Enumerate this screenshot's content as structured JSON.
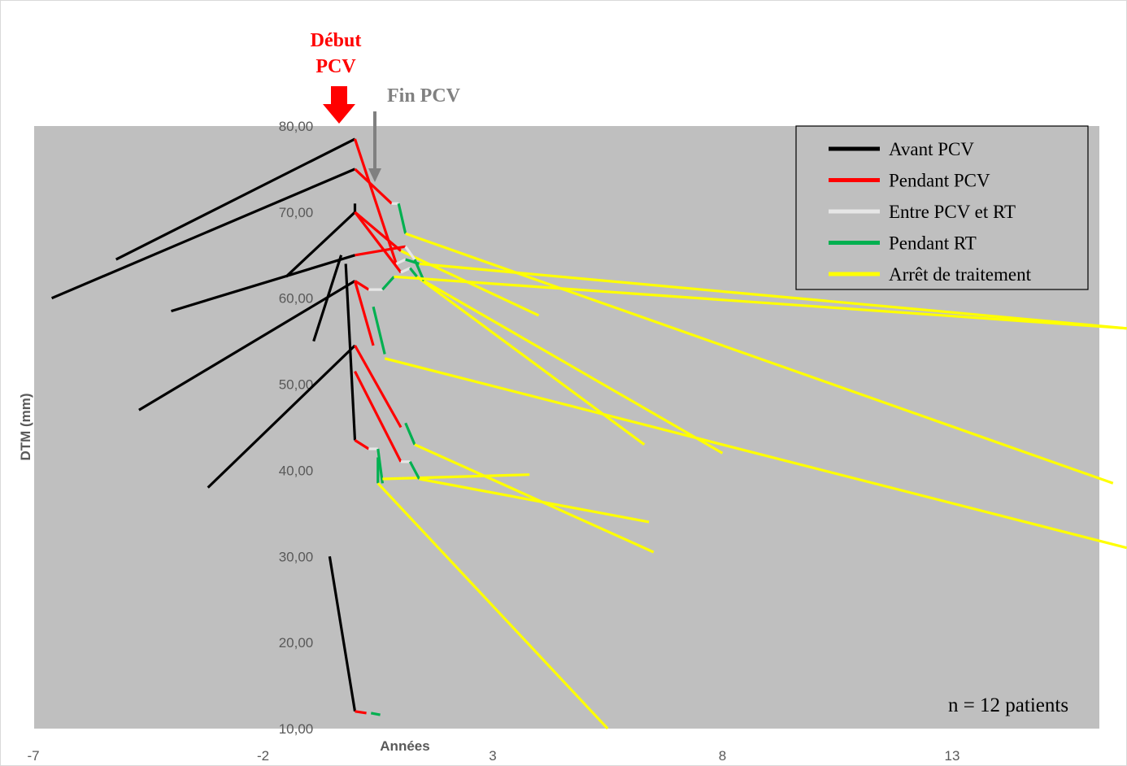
{
  "chart_data": {
    "type": "line",
    "xlabel": "Années",
    "ylabel": "DTM (mm)",
    "xlim": [
      -7,
      17
    ],
    "ylim": [
      10,
      80
    ],
    "x_ticks": [
      -7,
      -2,
      3,
      8,
      13
    ],
    "x_tick_labels": [
      "-7",
      "-2",
      "3",
      "8",
      "13"
    ],
    "y_ticks": [
      10,
      20,
      30,
      40,
      50,
      60,
      70,
      80
    ],
    "y_tick_labels": [
      "10,00",
      "20,00",
      "30,00",
      "40,00",
      "50,00",
      "60,00",
      "70,00",
      "80,00"
    ],
    "plot_background": "#bfbfbf",
    "grid": false,
    "legend_position": "top-right",
    "series": [
      {
        "name": "Avant PCV",
        "color": "#000000"
      },
      {
        "name": "Pendant PCV",
        "color": "#ff0000"
      },
      {
        "name": "Entre PCV et RT",
        "color": "#e6e6e6"
      },
      {
        "name": "Pendant RT",
        "color": "#00b050"
      },
      {
        "name": "Arrêt de traitement",
        "color": "#ffff00"
      }
    ],
    "annotations": [
      {
        "text_lines": [
          "Début",
          "PCV"
        ],
        "color": "#ff0000",
        "x": 0,
        "arrow": "red-block"
      },
      {
        "text_lines": [
          "Fin PCV"
        ],
        "color": "#808080",
        "x": 0.8,
        "arrow": "grey-thin"
      }
    ],
    "note": "n = 12 patients",
    "patients": [
      {
        "segments": [
          {
            "phase": 0,
            "points": [
              [
                -5.2,
                64.5
              ],
              [
                0.0,
                78.5
              ]
            ]
          },
          {
            "phase": 1,
            "points": [
              [
                0.0,
                78.5
              ],
              [
                0.9,
                64.0
              ]
            ]
          },
          {
            "phase": 2,
            "points": [
              [
                0.9,
                64.0
              ],
              [
                1.1,
                64.5
              ]
            ]
          },
          {
            "phase": 3,
            "points": [
              [
                1.1,
                64.5
              ],
              [
                1.4,
                64.0
              ]
            ]
          },
          {
            "phase": 4,
            "points": [
              [
                1.4,
                64.0
              ],
              [
                16.8,
                56.5
              ]
            ]
          }
        ]
      },
      {
        "segments": [
          {
            "phase": 0,
            "points": [
              [
                -6.6,
                60.0
              ],
              [
                0.0,
                75.0
              ]
            ]
          },
          {
            "phase": 1,
            "points": [
              [
                0.0,
                75.0
              ],
              [
                0.8,
                71.0
              ]
            ]
          },
          {
            "phase": 2,
            "points": [
              [
                0.8,
                71.0
              ],
              [
                0.95,
                71.0
              ]
            ]
          },
          {
            "phase": 3,
            "points": [
              [
                0.95,
                71.0
              ],
              [
                1.1,
                67.5
              ]
            ]
          },
          {
            "phase": 4,
            "points": [
              [
                1.1,
                67.5
              ],
              [
                16.5,
                38.5
              ]
            ]
          }
        ]
      },
      {
        "segments": [
          {
            "phase": 0,
            "points": [
              [
                -1.5,
                62.5
              ],
              [
                0.0,
                70.0
              ]
            ]
          },
          {
            "phase": 1,
            "points": [
              [
                0.0,
                70.0
              ],
              [
                1.0,
                65.5
              ]
            ]
          },
          {
            "phase": 4,
            "points": [
              [
                1.0,
                65.5
              ],
              [
                4.0,
                58.0
              ]
            ]
          }
        ]
      },
      {
        "segments": [
          {
            "phase": 0,
            "points": [
              [
                0.0,
                71.0
              ],
              [
                0.0,
                70.0
              ]
            ]
          },
          {
            "phase": 1,
            "points": [
              [
                0.0,
                70.0
              ],
              [
                1.0,
                63.0
              ]
            ]
          },
          {
            "phase": 2,
            "points": [
              [
                1.0,
                63.0
              ],
              [
                1.2,
                63.5
              ]
            ]
          },
          {
            "phase": 3,
            "points": [
              [
                1.2,
                63.5
              ],
              [
                1.35,
                62.5
              ]
            ]
          },
          {
            "phase": 4,
            "points": [
              [
                1.35,
                62.5
              ],
              [
                6.3,
                43.0
              ]
            ]
          }
        ]
      },
      {
        "segments": [
          {
            "phase": 0,
            "points": [
              [
                -4.0,
                58.5
              ],
              [
                0.0,
                65.0
              ]
            ]
          },
          {
            "phase": 1,
            "points": [
              [
                0.0,
                65.0
              ],
              [
                1.1,
                66.0
              ]
            ]
          },
          {
            "phase": 2,
            "points": [
              [
                1.1,
                66.0
              ],
              [
                1.3,
                64.5
              ]
            ]
          },
          {
            "phase": 3,
            "points": [
              [
                1.3,
                64.5
              ],
              [
                1.5,
                62.0
              ]
            ]
          },
          {
            "phase": 4,
            "points": [
              [
                1.5,
                62.0
              ],
              [
                8.0,
                42.0
              ]
            ]
          }
        ]
      },
      {
        "segments": [
          {
            "phase": 0,
            "points": [
              [
                -0.3,
                65.0
              ],
              [
                -0.9,
                55.0
              ]
            ]
          },
          {
            "phase": 1,
            "points": [
              [
                0.0,
                62.0
              ],
              [
                0.3,
                61.0
              ]
            ]
          },
          {
            "phase": 2,
            "points": [
              [
                0.3,
                61.0
              ],
              [
                0.6,
                61.0
              ]
            ]
          },
          {
            "phase": 3,
            "points": [
              [
                0.6,
                61.0
              ],
              [
                0.85,
                62.5
              ]
            ]
          },
          {
            "phase": 4,
            "points": [
              [
                0.85,
                62.5
              ],
              [
                16.8,
                56.5
              ]
            ]
          }
        ]
      },
      {
        "segments": [
          {
            "phase": 0,
            "points": [
              [
                -0.2,
                64.0
              ],
              [
                0.0,
                43.5
              ]
            ]
          },
          {
            "phase": 1,
            "points": [
              [
                0.0,
                43.5
              ],
              [
                0.3,
                42.5
              ]
            ]
          },
          {
            "phase": 2,
            "points": [
              [
                0.3,
                42.5
              ],
              [
                0.5,
                42.5
              ]
            ]
          },
          {
            "phase": 3,
            "points": [
              [
                0.5,
                42.5
              ],
              [
                0.6,
                38.5
              ]
            ]
          },
          {
            "phase": 4,
            "points": [
              [
                0.6,
                39.0
              ],
              [
                3.8,
                39.5
              ]
            ]
          }
        ]
      },
      {
        "segments": [
          {
            "phase": 0,
            "points": [
              [
                -4.7,
                47.0
              ],
              [
                0.0,
                62.0
              ]
            ]
          },
          {
            "phase": 1,
            "points": [
              [
                0.0,
                62.0
              ],
              [
                0.4,
                54.5
              ]
            ]
          },
          {
            "phase": 3,
            "points": [
              [
                0.4,
                59.0
              ],
              [
                0.65,
                53.5
              ]
            ]
          },
          {
            "phase": 4,
            "points": [
              [
                0.65,
                53.0
              ],
              [
                16.8,
                31.0
              ]
            ]
          }
        ]
      },
      {
        "segments": [
          {
            "phase": 0,
            "points": [
              [
                -3.2,
                38.0
              ],
              [
                0.0,
                54.5
              ]
            ]
          },
          {
            "phase": 1,
            "points": [
              [
                0.0,
                54.5
              ],
              [
                1.0,
                45.0
              ]
            ]
          },
          {
            "phase": 3,
            "points": [
              [
                1.1,
                45.5
              ],
              [
                1.3,
                43.0
              ]
            ]
          },
          {
            "phase": 4,
            "points": [
              [
                1.3,
                43.0
              ],
              [
                6.5,
                30.5
              ]
            ]
          }
        ]
      },
      {
        "segments": [
          {
            "phase": 1,
            "points": [
              [
                0.0,
                51.5
              ],
              [
                1.0,
                41.0
              ]
            ]
          },
          {
            "phase": 2,
            "points": [
              [
                1.0,
                41.0
              ],
              [
                1.2,
                41.0
              ]
            ]
          },
          {
            "phase": 3,
            "points": [
              [
                1.2,
                41.0
              ],
              [
                1.4,
                39.0
              ]
            ]
          },
          {
            "phase": 4,
            "points": [
              [
                1.4,
                39.0
              ],
              [
                6.4,
                34.0
              ]
            ]
          }
        ]
      },
      {
        "segments": [
          {
            "phase": 3,
            "points": [
              [
                0.5,
                41.5
              ],
              [
                0.5,
                38.5
              ]
            ]
          },
          {
            "phase": 4,
            "points": [
              [
                0.5,
                38.5
              ],
              [
                5.5,
                10.0
              ]
            ]
          }
        ]
      },
      {
        "segments": [
          {
            "phase": 0,
            "points": [
              [
                -0.55,
                30.0
              ],
              [
                0.0,
                12.0
              ]
            ]
          },
          {
            "phase": 1,
            "points": [
              [
                0.0,
                12.0
              ],
              [
                0.25,
                11.8
              ]
            ]
          },
          {
            "phase": 3,
            "points": [
              [
                0.35,
                11.8
              ],
              [
                0.55,
                11.6
              ]
            ]
          }
        ]
      }
    ]
  }
}
